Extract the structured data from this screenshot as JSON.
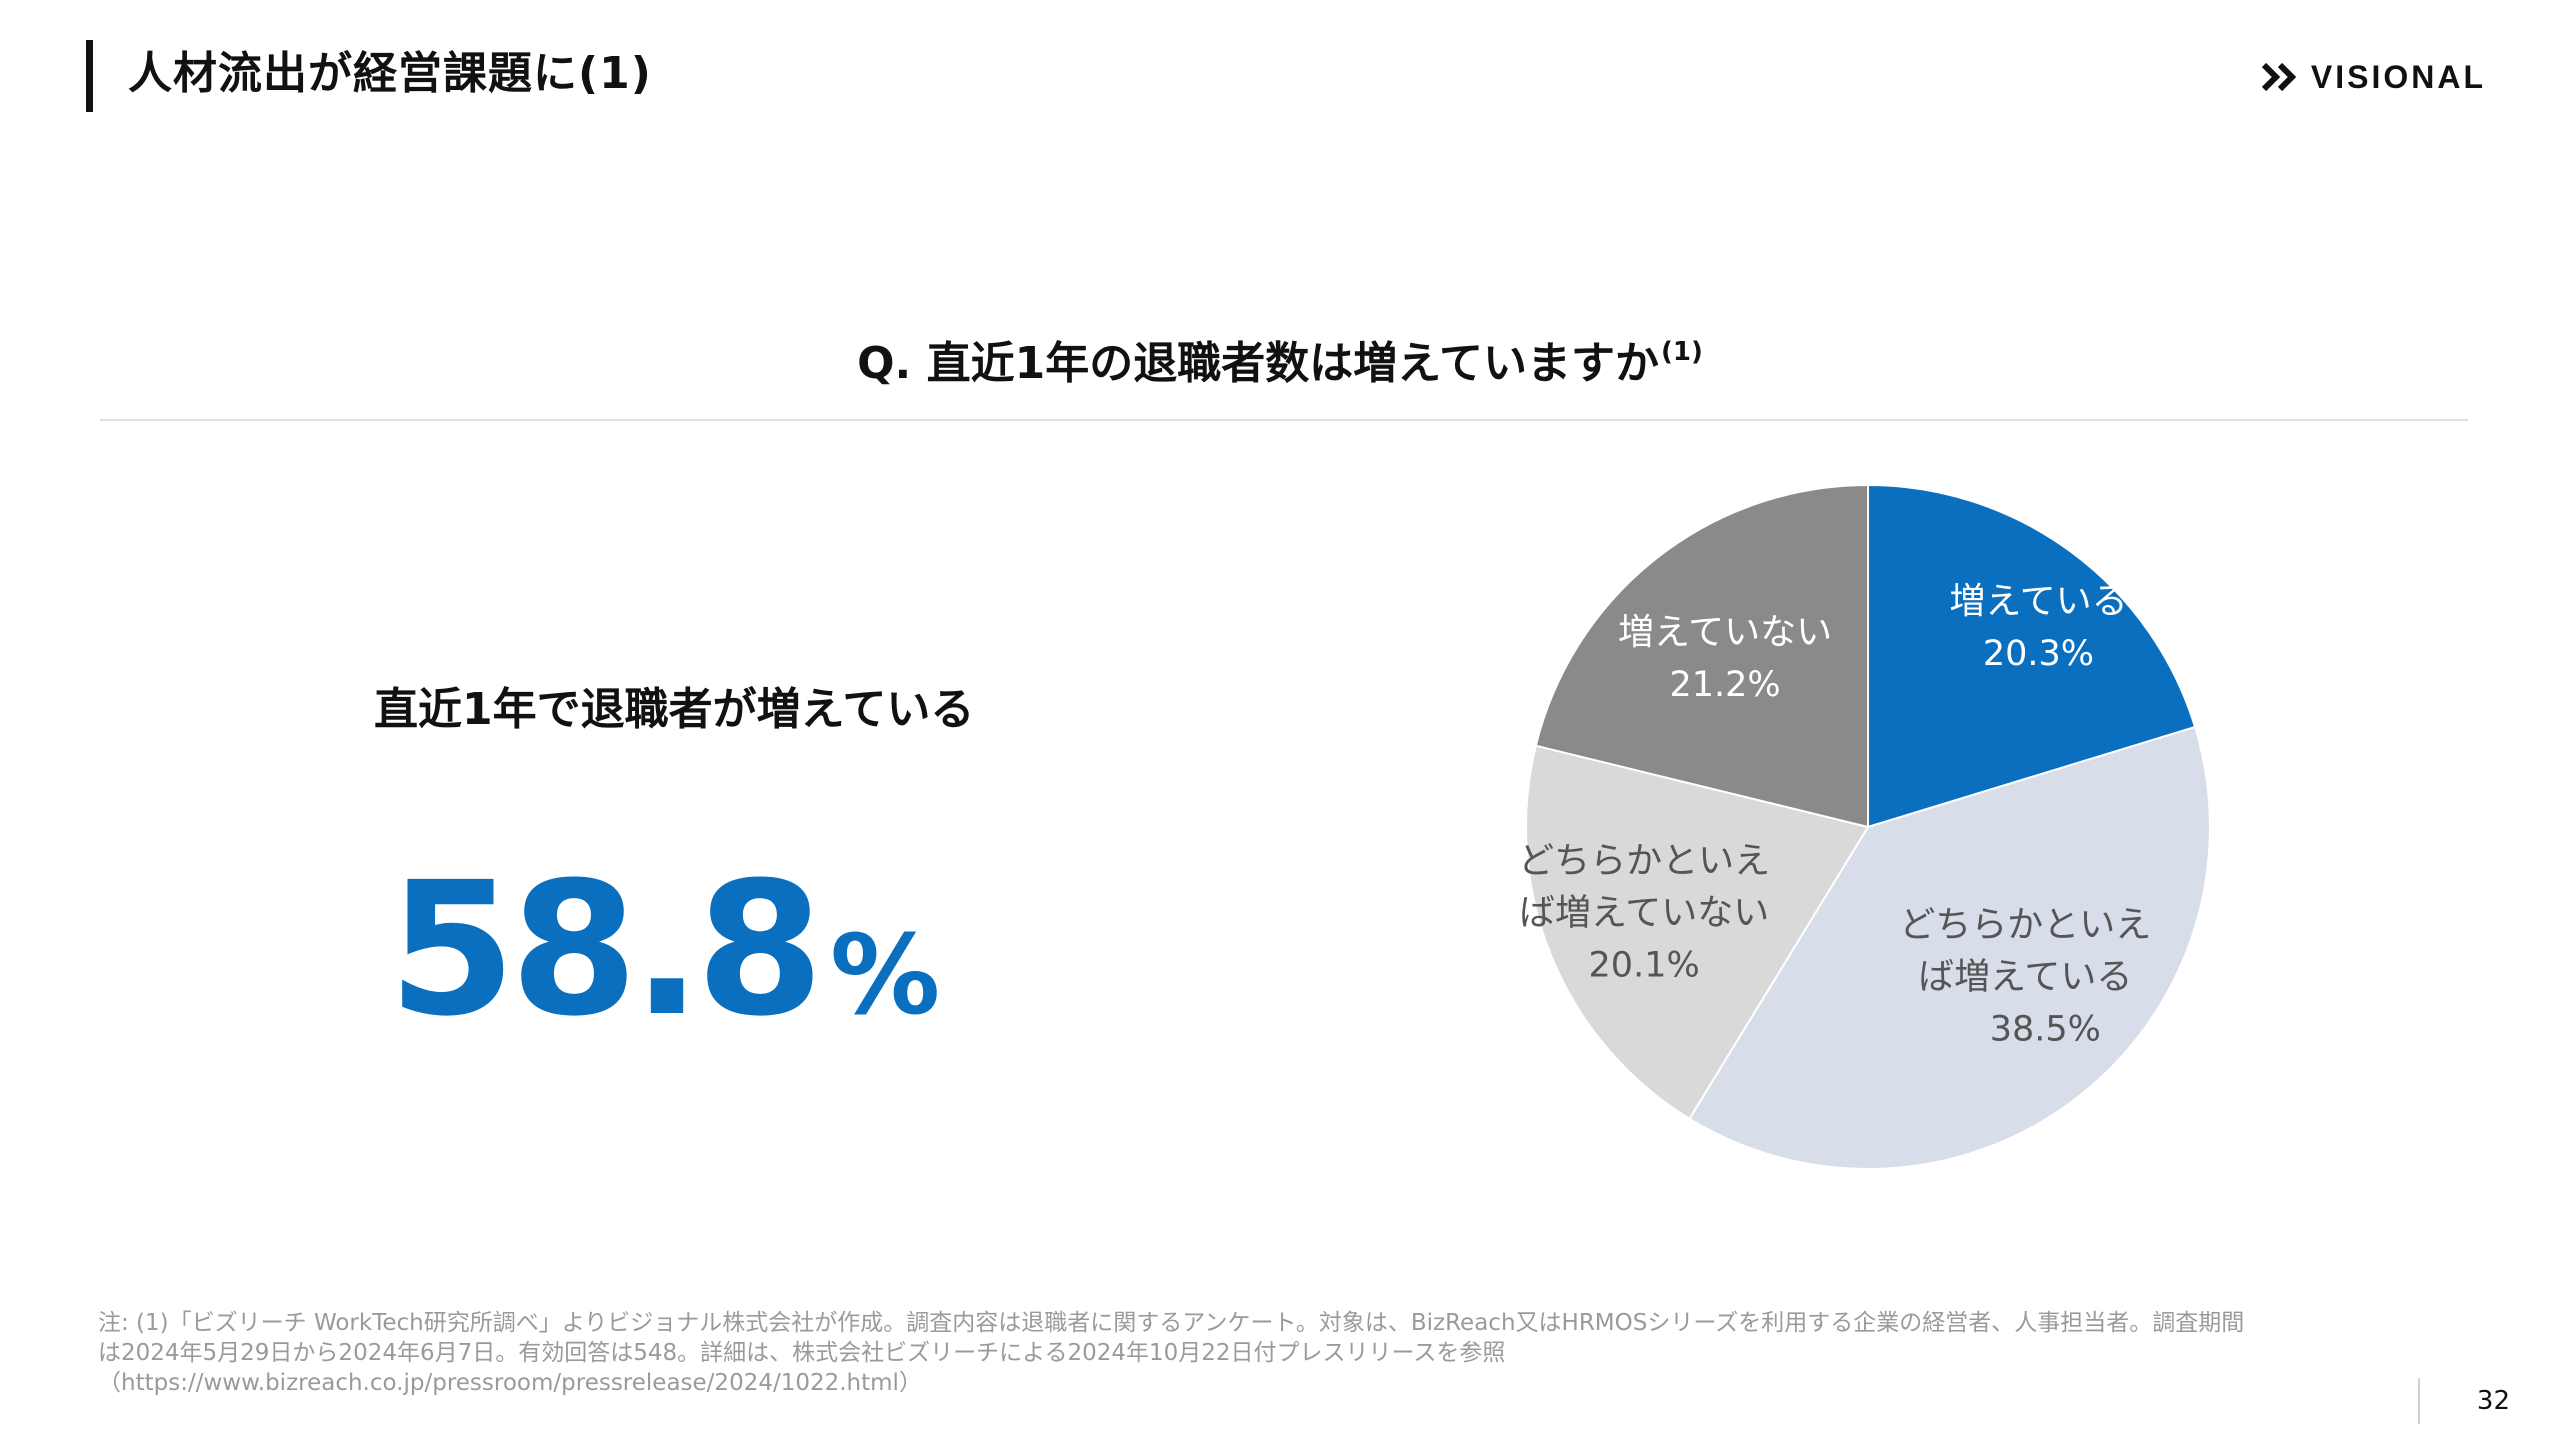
{
  "page": {
    "title": "人材流出が経営課題に(1)",
    "number": "32"
  },
  "brand": {
    "name": "VISIONAL",
    "logo_icon": "double-chevron-icon"
  },
  "colors": {
    "accent": "#0b6fbf",
    "slice_increasing": "#0b6fbf",
    "slice_somewhat_increasing": "#d7dde9",
    "slice_somewhat_not": "#d9d9d9",
    "slice_not": "#8a8a8a"
  },
  "question": {
    "text": "Q. 直近1年の退職者数は増えていますか",
    "note_marker": "(1)"
  },
  "summary": {
    "label": "直近1年で退職者が増えている",
    "value": "58.8",
    "unit": "%"
  },
  "chart_data": {
    "type": "pie",
    "title": "Q. 直近1年の退職者数は増えていますか",
    "slices": [
      {
        "label": "増えている",
        "display_lines": [
          "増えている"
        ],
        "value": 20.3,
        "value_label": "20.3%",
        "color": "#0b6fbf",
        "text_color": "#ffffff"
      },
      {
        "label": "どちらかといえば増えている",
        "display_lines": [
          "どちらかといえ",
          "ば増えている"
        ],
        "value": 38.5,
        "value_label": "38.5%",
        "color": "#d7dde9",
        "text_color": "#555555"
      },
      {
        "label": "どちらかといえば増えていない",
        "display_lines": [
          "どちらかといえ",
          "ば増えていない"
        ],
        "value": 20.1,
        "value_label": "20.1%",
        "color": "#d9d9d9",
        "text_color": "#555555"
      },
      {
        "label": "増えていない",
        "display_lines": [
          "増えていない"
        ],
        "value": 21.2,
        "value_label": "21.2%",
        "color": "#8a8a8a",
        "text_color": "#ffffff"
      }
    ],
    "start": "12 o'clock",
    "direction": "clockwise",
    "legend": "none"
  },
  "footnote": {
    "lines": [
      "注: (1)「ビズリーチ WorkTech研究所調べ」よりビジョナル株式会社が作成。調査内容は退職者に関するアンケート。対象は、BizReach又はHRMOSシリーズを利用する企業の経営者、人事担当者。調査期間",
      "は2024年5月29日から2024年6月7日。有効回答は548。詳細は、株式会社ビズリーチによる2024年10月22日付プレスリリースを参照",
      "（https://www.bizreach.co.jp/pressroom/pressrelease/2024/1022.html）"
    ]
  }
}
